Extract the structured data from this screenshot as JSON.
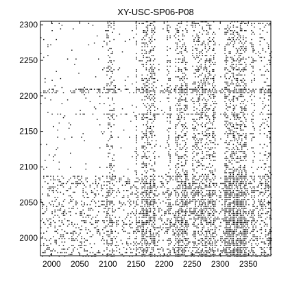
{
  "chart_data": {
    "type": "scatter",
    "title": "XY-USC-SP06-P08",
    "xlabel": "",
    "ylabel": "",
    "xlim": [
      1980,
      2390
    ],
    "ylim": [
      1975,
      2305
    ],
    "x_ticks": [
      2000,
      2050,
      2100,
      2150,
      2200,
      2250,
      2300,
      2350
    ],
    "y_ticks": [
      2000,
      2050,
      2100,
      2150,
      2200,
      2250,
      2300
    ],
    "grid": false,
    "legend": "none",
    "marker_color": "#000000",
    "series": [
      {
        "x_bands": [
          {
            "from": 2097,
            "to": 2110,
            "density": 0.4
          },
          {
            "from": 2148,
            "to": 2150,
            "density": 0.7
          },
          {
            "from": 2160,
            "to": 2183,
            "density": 0.6
          },
          {
            "from": 2203,
            "to": 2210,
            "density": 0.5
          },
          {
            "from": 2218,
            "to": 2242,
            "density": 0.6
          },
          {
            "from": 2250,
            "to": 2290,
            "density": 0.55
          },
          {
            "from": 2307,
            "to": 2345,
            "density": 0.75
          },
          {
            "from": 2355,
            "to": 2362,
            "density": 0.5
          },
          {
            "from": 2370,
            "to": 2388,
            "density": 0.3
          }
        ],
        "y_bands": [
          {
            "from": 1975,
            "to": 2088,
            "density": 0.4
          },
          {
            "from": 2205,
            "to": 2210,
            "density": 0.7
          },
          {
            "from": 2173,
            "to": 2176,
            "density": 0.5
          }
        ]
      }
    ]
  }
}
